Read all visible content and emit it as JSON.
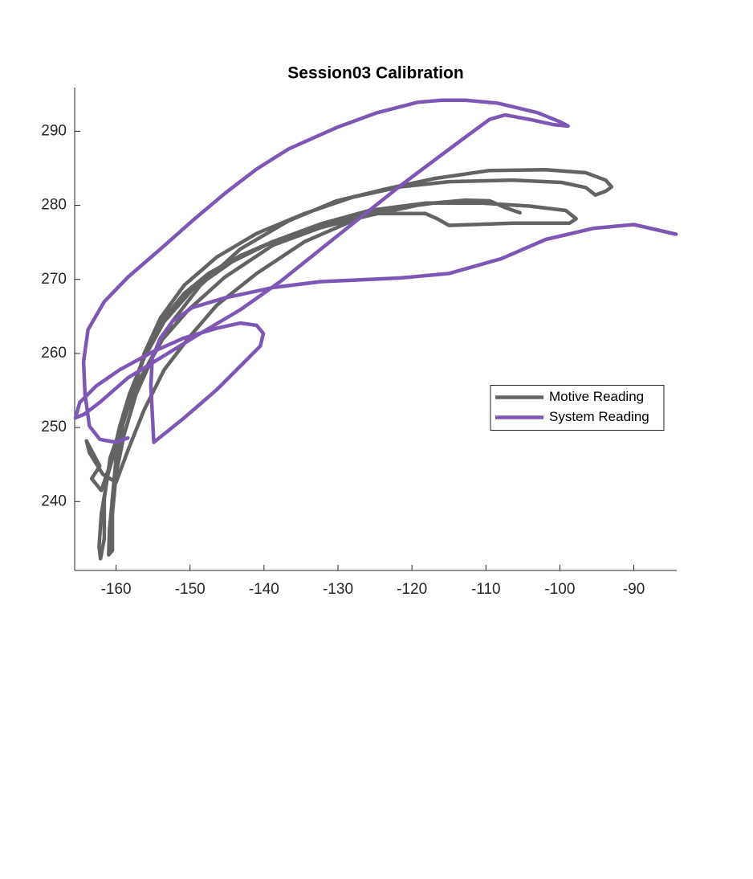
{
  "chart_data": {
    "type": "line",
    "title": "Session03 Calibration",
    "xlim": [
      -165.6,
      -84.2
    ],
    "ylim": [
      230.7,
      295.9
    ],
    "xticks": [
      -160,
      -150,
      -140,
      -130,
      -120,
      -110,
      -100,
      -90
    ],
    "yticks": [
      240,
      250,
      260,
      270,
      280,
      290
    ],
    "grid": false,
    "legend": "east",
    "series": [
      {
        "name": "Motive Reading",
        "color": "#636363",
        "x": [
          -105.4,
          -107.4,
          -109.5,
          -112.8,
          -117.1,
          -121.5,
          -125.8,
          -130.2,
          -134.5,
          -138.8,
          -143.2,
          -147.5,
          -150.8,
          -153.5,
          -155.7,
          -157.3,
          -158.9,
          -160.0,
          -160.5,
          -160.9,
          -161.0,
          -160.5,
          -160.5,
          -160.0,
          -158.9,
          -157.3,
          -155.1,
          -152.4,
          -148.6,
          -143.2,
          -136.7,
          -130.2,
          -123.6,
          -117.1,
          -109.5,
          -101.9,
          -96.5,
          -93.8,
          -93.0,
          -93.8,
          -95.2,
          -96.5,
          -99.8,
          -106.3,
          -115.0,
          -121.5,
          -128.0,
          -134.5,
          -141.0,
          -146.4,
          -150.8,
          -154.0,
          -156.2,
          -157.8,
          -159.5,
          -161.1,
          -162.0,
          -162.3,
          -162.1,
          -161.6,
          -161.6,
          -160.8,
          -158.9,
          -156.7,
          -154.0,
          -150.2,
          -145.3,
          -138.8,
          -132.3,
          -124.7,
          -118.2,
          -116.6,
          -115.0,
          -106.3,
          -98.7,
          -97.8,
          -99.2,
          -104.1,
          -110.6,
          -118.2,
          -125.8,
          -132.3,
          -138.8,
          -144.3,
          -149.7,
          -153.5,
          -156.2,
          -158.2,
          -159.5,
          -160.5,
          -162.0,
          -163.3,
          -162.2,
          -164.0,
          -163.6,
          -161.8,
          -160.0,
          -158.4,
          -156.2,
          -153.5,
          -150.2,
          -146.4,
          -141.0,
          -134.5,
          -126.9,
          -119.3
        ],
        "values": [
          279.0,
          279.7,
          280.6,
          280.7,
          280.3,
          279.7,
          278.8,
          277.9,
          276.6,
          275.1,
          273.2,
          270.8,
          268.1,
          264.8,
          261.0,
          256.7,
          251.3,
          245.9,
          240.4,
          236.1,
          232.8,
          233.4,
          238.3,
          243.7,
          249.1,
          254.5,
          259.4,
          264.3,
          269.2,
          274.1,
          277.9,
          280.6,
          282.2,
          283.6,
          284.7,
          284.8,
          284.4,
          283.4,
          282.5,
          281.9,
          281.4,
          282.4,
          283.1,
          283.4,
          283.2,
          282.5,
          281.1,
          278.9,
          276.2,
          273.0,
          269.2,
          264.8,
          260.0,
          254.5,
          249.1,
          243.7,
          238.3,
          233.9,
          232.3,
          235.0,
          240.4,
          245.9,
          251.3,
          256.7,
          261.6,
          265.9,
          270.3,
          274.6,
          277.0,
          278.9,
          278.9,
          278.2,
          277.3,
          277.6,
          277.6,
          278.2,
          279.3,
          279.9,
          280.3,
          280.3,
          279.3,
          277.5,
          275.1,
          272.4,
          268.6,
          264.3,
          259.4,
          254.5,
          250.2,
          245.9,
          241.5,
          243.1,
          244.8,
          248.2,
          246.6,
          243.7,
          242.6,
          246.9,
          252.4,
          257.8,
          262.1,
          266.5,
          270.8,
          275.1,
          278.4,
          280.0
        ]
      },
      {
        "name": "System Reading",
        "color": "#7e57b5",
        "x": [
          -84.3,
          -90.0,
          -95.4,
          -101.9,
          -107.9,
          -115.0,
          -121.5,
          -128.0,
          -132.3,
          -138.8,
          -145.3,
          -149.7,
          -152.4,
          -154.0,
          -155.1,
          -155.3,
          -154.9,
          -150.8,
          -146.4,
          -142.6,
          -140.5,
          -140.1,
          -141.0,
          -143.2,
          -146.4,
          -150.8,
          -155.1,
          -159.5,
          -162.7,
          -164.9,
          -165.5,
          -164.3,
          -162.2,
          -158.4,
          -154.0,
          -148.6,
          -143.2,
          -137.8,
          -132.3,
          -126.9,
          -121.5,
          -117.1,
          -112.8,
          -109.5,
          -107.4,
          -104.1,
          -100.9,
          -98.9,
          -99.8,
          -103.0,
          -108.4,
          -112.8,
          -116.0,
          -119.3,
          -124.7,
          -130.2,
          -136.7,
          -141.0,
          -145.3,
          -149.7,
          -154.0,
          -158.4,
          -161.6,
          -163.8,
          -164.4,
          -164.2,
          -163.6,
          -162.2,
          -160.0,
          -158.4
        ],
        "values": [
          276.1,
          277.4,
          276.9,
          275.4,
          272.8,
          270.8,
          270.2,
          269.9,
          269.7,
          268.9,
          267.5,
          266.2,
          264.3,
          262.1,
          259.4,
          255.6,
          248.0,
          251.3,
          255.1,
          258.9,
          261.0,
          262.7,
          263.8,
          264.1,
          263.4,
          262.1,
          260.2,
          257.8,
          255.6,
          253.4,
          251.3,
          251.8,
          253.4,
          256.7,
          259.4,
          262.7,
          265.9,
          269.7,
          274.1,
          278.4,
          282.7,
          286.0,
          289.2,
          291.6,
          292.2,
          291.6,
          290.9,
          290.7,
          291.2,
          292.5,
          293.8,
          294.2,
          294.2,
          293.9,
          292.5,
          290.5,
          287.6,
          284.9,
          281.6,
          277.9,
          274.1,
          270.3,
          267.0,
          263.2,
          258.9,
          254.5,
          250.2,
          248.4,
          248.0,
          248.6
        ]
      }
    ]
  }
}
